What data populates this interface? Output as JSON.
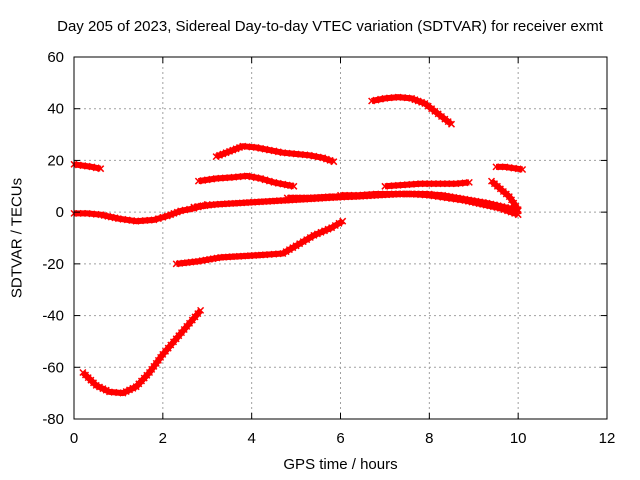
{
  "chart_data": {
    "type": "scatter",
    "title": "Day 205 of 2023, Sidereal Day-to-day VTEC variation (SDTVAR) for receiver exmt",
    "xlabel": "GPS time / hours",
    "ylabel": "SDTVAR / TECUs",
    "xlim": [
      0,
      12
    ],
    "ylim": [
      -80,
      60
    ],
    "xticks": [
      "0",
      "2",
      "4",
      "6",
      "8",
      "10",
      "12"
    ],
    "yticks": [
      "-80",
      "-60",
      "-40",
      "-20",
      "0",
      "20",
      "40",
      "60"
    ],
    "grid": true,
    "legend": "none",
    "marker_color": "#ff0000",
    "series": [
      {
        "x": [
          0.0,
          0.2,
          0.4,
          0.6
        ],
        "y": [
          18.5,
          18.0,
          17.5,
          16.8
        ]
      },
      {
        "x": [
          0.0,
          0.3,
          0.6,
          1.0,
          1.4,
          1.8,
          2.1,
          2.4,
          2.7,
          3.0
        ],
        "y": [
          -0.5,
          -0.5,
          -1.0,
          -2.5,
          -3.5,
          -3.0,
          -1.5,
          0.5,
          1.5,
          3.0
        ]
      },
      {
        "x": [
          0.2,
          0.5,
          0.8,
          1.1,
          1.4,
          1.7,
          2.0,
          2.3,
          2.6,
          2.85
        ],
        "y": [
          -62.0,
          -67.0,
          -69.5,
          -70.0,
          -67.5,
          -62.0,
          -55.0,
          -49.0,
          -43.0,
          -38.0
        ]
      },
      {
        "x": [
          2.3,
          2.8,
          3.3,
          3.8,
          4.3,
          4.7,
          5.0,
          5.4,
          5.8,
          6.05
        ],
        "y": [
          -20.0,
          -19.0,
          -17.5,
          -17.0,
          -16.5,
          -16.0,
          -13.0,
          -9.0,
          -6.0,
          -3.5
        ]
      },
      {
        "x": [
          2.8,
          3.2,
          3.6,
          3.9,
          4.2,
          4.5,
          4.8,
          4.95
        ],
        "y": [
          12.0,
          13.0,
          13.5,
          14.0,
          13.0,
          11.5,
          10.5,
          10.0
        ]
      },
      {
        "x": [
          3.2,
          3.5,
          3.8,
          4.1,
          4.4,
          4.7,
          5.0,
          5.3,
          5.6,
          5.85
        ],
        "y": [
          21.5,
          23.5,
          25.5,
          25.0,
          24.0,
          23.0,
          22.5,
          22.0,
          21.0,
          19.5
        ]
      },
      {
        "x": [
          2.7,
          3.2,
          3.7,
          4.2,
          4.7,
          5.2,
          5.7,
          6.2,
          6.7,
          7.2,
          7.7,
          8.0
        ],
        "y": [
          2.0,
          3.0,
          3.5,
          4.0,
          4.5,
          5.0,
          5.5,
          6.0,
          6.5,
          7.0,
          7.0,
          7.0
        ]
      },
      {
        "x": [
          4.8,
          5.3,
          5.8,
          6.3,
          6.8,
          7.3,
          7.8,
          8.3,
          8.8,
          9.3,
          9.8,
          10.0
        ],
        "y": [
          5.5,
          5.5,
          6.0,
          6.0,
          6.5,
          7.0,
          7.0,
          6.5,
          5.0,
          3.5,
          1.5,
          0.5
        ]
      },
      {
        "x": [
          6.0,
          6.4,
          6.8,
          7.2,
          7.6,
          8.0,
          8.4,
          8.8,
          9.2,
          9.6,
          10.0
        ],
        "y": [
          6.5,
          6.5,
          7.0,
          7.0,
          7.0,
          6.5,
          5.5,
          4.5,
          3.0,
          1.5,
          -1.0
        ]
      },
      {
        "x": [
          7.0,
          7.4,
          7.8,
          8.2,
          8.6,
          8.9
        ],
        "y": [
          10.0,
          10.5,
          11.0,
          11.0,
          11.0,
          11.5
        ]
      },
      {
        "x": [
          6.7,
          7.0,
          7.3,
          7.6,
          7.9,
          8.2,
          8.5
        ],
        "y": [
          43.0,
          44.0,
          44.5,
          44.0,
          42.0,
          38.0,
          34.0
        ]
      },
      {
        "x": [
          9.4,
          9.6,
          9.8,
          10.0
        ],
        "y": [
          12.0,
          9.0,
          6.0,
          1.0
        ]
      },
      {
        "x": [
          9.5,
          9.7,
          9.9,
          10.1
        ],
        "y": [
          17.5,
          17.5,
          17.0,
          16.5
        ]
      }
    ]
  }
}
